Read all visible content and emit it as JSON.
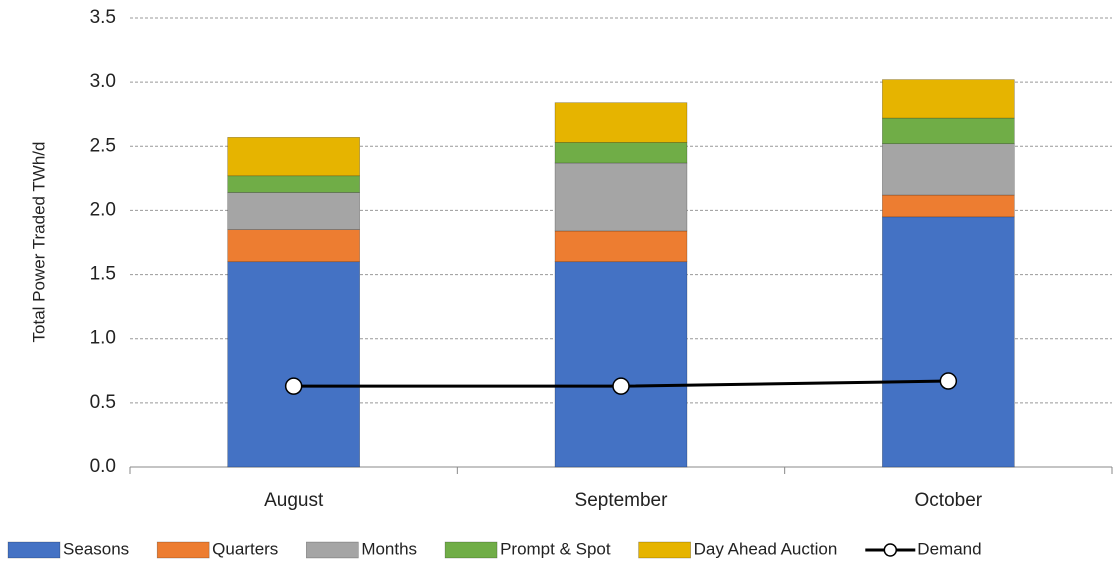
{
  "chart_data": {
    "type": "bar",
    "stacked": true,
    "y_label": "Total Power Traded TWh/d",
    "categories": [
      "August",
      "September",
      "October"
    ],
    "series": [
      {
        "name": "Seasons",
        "color": "#4472c4",
        "values": [
          1.6,
          1.6,
          1.95
        ]
      },
      {
        "name": "Quarters",
        "color": "#ed7d31",
        "values": [
          0.25,
          0.24,
          0.17
        ]
      },
      {
        "name": "Months",
        "color": "#a5a5a5",
        "values": [
          0.29,
          0.53,
          0.4
        ]
      },
      {
        "name": "Prompt & Spot",
        "color": "#70ad47",
        "values": [
          0.13,
          0.16,
          0.2
        ]
      },
      {
        "name": "Day Ahead Auction",
        "color": "#e6b400",
        "values": [
          0.3,
          0.31,
          0.3
        ]
      },
      {
        "name": "Demand",
        "type": "line",
        "color": "#000000",
        "values": [
          0.63,
          0.63,
          0.67
        ]
      }
    ],
    "ylim": [
      0,
      3.5
    ],
    "yticks": [
      {
        "value": 0,
        "label": "0.0"
      },
      0.5,
      {
        "value": 1,
        "label": "1.0"
      },
      1.5,
      {
        "value": 2,
        "label": "2.0"
      },
      2.5,
      {
        "value": 3,
        "label": "3.0"
      },
      3.5
    ],
    "grid": true,
    "legend": "bottom"
  }
}
